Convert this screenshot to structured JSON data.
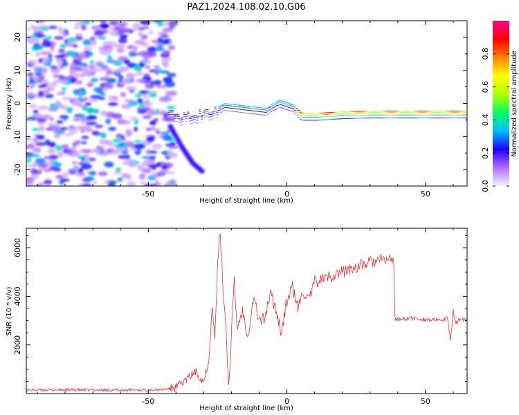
{
  "chart_data": [
    {
      "type": "heatmap",
      "title": "PAZ1.2024.108.02.10.G06",
      "xlabel": "Height of straight line (km)",
      "ylabel": "Frequency (Hz)",
      "xlim": [
        -94,
        65
      ],
      "ylim": [
        -25,
        25
      ],
      "xticks": [
        -50,
        0,
        50
      ],
      "yticks": [
        -20,
        -10,
        0,
        10,
        20
      ],
      "colorbar": {
        "label": "Normalized spectral amplitude",
        "range": [
          0,
          1
        ],
        "ticks": [
          "0.0",
          "0.2",
          "0.4",
          "0.6",
          "0.8"
        ],
        "colormap": [
          "#f5f0ff",
          "#b070ff",
          "#2000ff",
          "#00bfff",
          "#00ff60",
          "#b0ff00",
          "#ffff00",
          "#ff8000",
          "#ff0000",
          "#ff0090"
        ]
      },
      "ridge": {
        "x": [
          -43,
          -38,
          -33,
          -28,
          -23,
          -18,
          -13,
          -8,
          -3,
          2,
          5,
          10,
          20,
          30,
          40,
          50,
          60,
          65
        ],
        "y": [
          -2.5,
          -3.5,
          -2.5,
          -2,
          0.5,
          0,
          -0.5,
          -1,
          1.5,
          0,
          -2.5,
          -2.5,
          -2,
          -1.8,
          -1.8,
          -1.8,
          -1.8,
          -1.8
        ]
      },
      "noise_region": {
        "xmin": -94,
        "xmax": -41,
        "ymin": -25,
        "ymax": 25
      },
      "tail": {
        "x": [
          -42,
          -38,
          -34,
          -30
        ],
        "y": [
          -7,
          -13,
          -18,
          -21
        ]
      }
    },
    {
      "type": "line",
      "title": "",
      "xlabel": "Height of straight line (km)",
      "ylabel": "SNR (10 * v/v)",
      "xlim": [
        -94,
        65
      ],
      "ylim": [
        0,
        6800
      ],
      "xticks": [
        -50,
        0,
        50
      ],
      "yticks": [
        2000,
        4000,
        6000
      ],
      "color": "#e83030",
      "series": [
        {
          "x": [
            -94,
            -80,
            -60,
            -45,
            -40,
            -36,
            -33,
            -30,
            -28,
            -27,
            -26,
            -25,
            -24,
            -23,
            -22,
            -21,
            -20,
            -19,
            -18,
            -16,
            -14,
            -12,
            -10,
            -8,
            -6,
            -4,
            -2,
            0,
            2,
            4,
            6,
            8,
            10,
            15,
            20,
            25,
            30,
            35,
            38.5,
            39,
            40,
            45,
            50,
            55,
            58,
            59,
            60,
            61,
            62,
            65
          ],
          "y": [
            150,
            150,
            140,
            160,
            250,
            600,
            900,
            500,
            1500,
            3800,
            2200,
            5200,
            6700,
            4300,
            2800,
            200,
            2500,
            4600,
            2700,
            3400,
            2400,
            4000,
            3000,
            3100,
            4100,
            3500,
            2500,
            3800,
            4400,
            3500,
            4200,
            3800,
            4600,
            4800,
            5000,
            5200,
            5400,
            5500,
            5550,
            3100,
            3050,
            3100,
            3050,
            3000,
            3100,
            2100,
            3400,
            2900,
            3050,
            3000
          ]
        }
      ]
    }
  ]
}
